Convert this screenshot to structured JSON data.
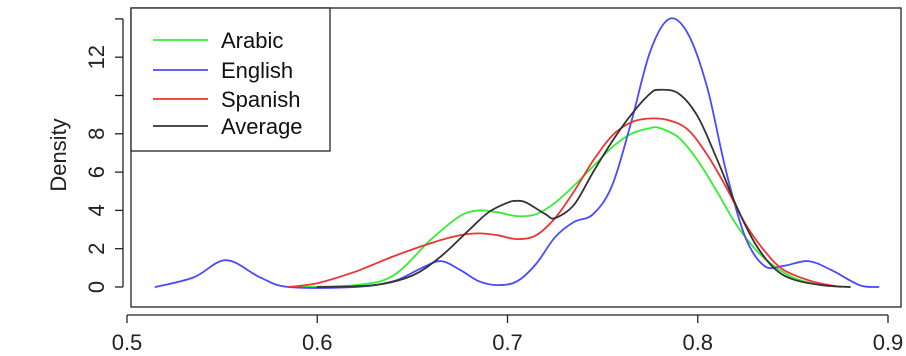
{
  "chart_data": {
    "type": "line",
    "title": "",
    "xlabel": "",
    "ylabel": "Density",
    "xlim": [
      0.5,
      0.9
    ],
    "ylim": [
      0,
      14
    ],
    "x_ticks": [
      "0.5",
      "0.6",
      "0.7",
      "0.8",
      "0.9"
    ],
    "y_ticks": [
      "0",
      "2",
      "4",
      "6",
      "8",
      "12"
    ],
    "legend_position": "top-left",
    "grid": false,
    "series": [
      {
        "name": "Arabic",
        "color": "#33ee33",
        "x": [
          0.59,
          0.62,
          0.64,
          0.66,
          0.675,
          0.685,
          0.695,
          0.705,
          0.715,
          0.725,
          0.735,
          0.745,
          0.755,
          0.765,
          0.775,
          0.78,
          0.79,
          0.8,
          0.81,
          0.82,
          0.83,
          0.84,
          0.85,
          0.86,
          0.87,
          0.88
        ],
        "y": [
          0,
          0.1,
          0.6,
          2.5,
          3.7,
          4.0,
          3.9,
          3.7,
          3.8,
          4.4,
          5.3,
          6.3,
          7.3,
          8.0,
          8.3,
          8.3,
          7.8,
          6.6,
          5.0,
          3.3,
          2.0,
          1.1,
          0.5,
          0.2,
          0.05,
          0
        ]
      },
      {
        "name": "English",
        "color": "#4a4aff",
        "x": [
          0.515,
          0.535,
          0.552,
          0.57,
          0.585,
          0.62,
          0.64,
          0.655,
          0.665,
          0.675,
          0.685,
          0.695,
          0.705,
          0.715,
          0.725,
          0.735,
          0.745,
          0.755,
          0.765,
          0.775,
          0.785,
          0.795,
          0.805,
          0.815,
          0.825,
          0.835,
          0.845,
          0.858,
          0.87,
          0.885,
          0.895
        ],
        "y": [
          0,
          0.5,
          1.4,
          0.5,
          0,
          0,
          0.3,
          1.0,
          1.35,
          0.9,
          0.3,
          0.1,
          0.3,
          1.2,
          2.6,
          3.4,
          3.8,
          5.3,
          8.6,
          12.3,
          14.0,
          13.2,
          10.4,
          6.0,
          2.6,
          1.1,
          1.1,
          1.35,
          0.9,
          0.1,
          0
        ]
      },
      {
        "name": "Spanish",
        "color": "#ee3333",
        "x": [
          0.585,
          0.6,
          0.62,
          0.64,
          0.66,
          0.675,
          0.685,
          0.695,
          0.705,
          0.715,
          0.725,
          0.735,
          0.745,
          0.755,
          0.765,
          0.775,
          0.785,
          0.795,
          0.805,
          0.815,
          0.825,
          0.835,
          0.845,
          0.86,
          0.875
        ],
        "y": [
          0,
          0.2,
          0.8,
          1.6,
          2.3,
          2.7,
          2.8,
          2.7,
          2.5,
          2.7,
          3.6,
          5.0,
          6.6,
          7.9,
          8.6,
          8.8,
          8.7,
          8.2,
          6.9,
          5.2,
          3.3,
          1.9,
          0.9,
          0.3,
          0
        ]
      },
      {
        "name": "Average",
        "color": "#333333",
        "x": [
          0.6,
          0.63,
          0.65,
          0.665,
          0.68,
          0.69,
          0.7,
          0.705,
          0.71,
          0.72,
          0.725,
          0.735,
          0.745,
          0.755,
          0.765,
          0.775,
          0.78,
          0.79,
          0.8,
          0.81,
          0.82,
          0.83,
          0.84,
          0.85,
          0.865,
          0.88
        ],
        "y": [
          0,
          0.1,
          0.6,
          1.6,
          3.0,
          3.9,
          4.4,
          4.5,
          4.4,
          3.8,
          3.6,
          4.3,
          6.0,
          7.6,
          9.0,
          10.1,
          10.3,
          10.1,
          8.9,
          6.7,
          4.3,
          2.3,
          1.0,
          0.4,
          0.1,
          0
        ]
      }
    ]
  }
}
